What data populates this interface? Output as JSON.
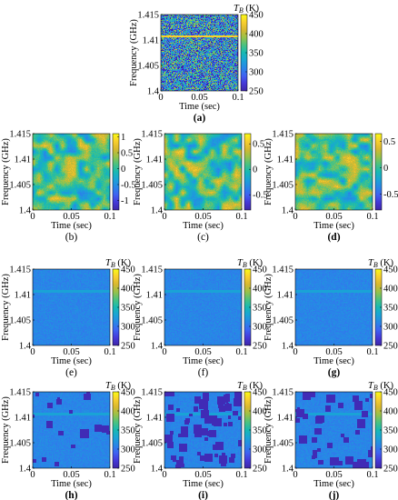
{
  "figure": {
    "panels": [
      {
        "id": "a",
        "label": "(a)",
        "bold": true,
        "map": "noise",
        "colorbar_title": "T_B (K)",
        "show_ylabel": true,
        "show_xlabel": true
      },
      {
        "id": "b",
        "label": "(b)",
        "bold": false,
        "map": "smooth",
        "colorbar_title": "",
        "show_ylabel": true,
        "show_xlabel": true
      },
      {
        "id": "c",
        "label": "(c)",
        "bold": false,
        "map": "smooth",
        "colorbar_title": "",
        "show_ylabel": true,
        "show_xlabel": true
      },
      {
        "id": "d",
        "label": "(d)",
        "bold": true,
        "map": "smooth",
        "colorbar_title": "",
        "show_ylabel": true,
        "show_xlabel": true
      },
      {
        "id": "e",
        "label": "(e)",
        "bold": false,
        "map": "blue",
        "colorbar_title": "T_B (K)",
        "show_ylabel": true,
        "show_xlabel": true
      },
      {
        "id": "f",
        "label": "(f)",
        "bold": false,
        "map": "blue",
        "colorbar_title": "T_B (K)",
        "show_ylabel": true,
        "show_xlabel": true
      },
      {
        "id": "g",
        "label": "(g)",
        "bold": true,
        "map": "blue",
        "colorbar_title": "T_B (K)",
        "show_ylabel": true,
        "show_xlabel": true
      },
      {
        "id": "h",
        "label": "(h)",
        "bold": true,
        "map": "rfi",
        "colorbar_title": "T_B (K)",
        "show_ylabel": true,
        "show_xlabel": true
      },
      {
        "id": "i",
        "label": "(i)",
        "bold": true,
        "map": "rfi",
        "colorbar_title": "T_B (K)",
        "show_ylabel": true,
        "show_xlabel": true
      },
      {
        "id": "j",
        "label": "(j)",
        "bold": true,
        "map": "rfi",
        "colorbar_title": "T_B (K)",
        "show_ylabel": true,
        "show_xlabel": true
      }
    ]
  },
  "chart_data": {
    "type": "heatmap",
    "xlabel": "Time (sec)",
    "ylabel": "Frequency (GHz)",
    "xlim": [
      0,
      0.1
    ],
    "ylim": [
      1.4,
      1.415
    ],
    "x_ticks": [
      "0",
      "0.05",
      "0.1"
    ],
    "y_ticks": [
      "1.4",
      "1.405",
      "1.41",
      "1.415"
    ],
    "colorbars": {
      "a": {
        "range": [
          250,
          450
        ],
        "ticks": [
          "250",
          "300",
          "350",
          "400",
          "450"
        ]
      },
      "b": {
        "range": [
          -1.3,
          1.1
        ],
        "ticks": [
          "-1",
          "-0.5",
          "0",
          "0.5",
          "1"
        ]
      },
      "c": {
        "range": [
          -0.8,
          0.7
        ],
        "ticks": [
          "-0.5",
          "0",
          "0.5"
        ]
      },
      "d": {
        "range": [
          -0.8,
          0.65
        ],
        "ticks": [
          "-0.5",
          "0",
          "0.5"
        ]
      },
      "e": {
        "range": [
          250,
          450
        ],
        "ticks": [
          "250",
          "300",
          "350",
          "400",
          "450"
        ]
      },
      "f": {
        "range": [
          250,
          450
        ],
        "ticks": [
          "250",
          "300",
          "350",
          "400",
          "450"
        ]
      },
      "g": {
        "range": [
          250,
          450
        ],
        "ticks": [
          "250",
          "300",
          "350",
          "400",
          "450"
        ]
      },
      "h": {
        "range": [
          250,
          450
        ],
        "ticks": [
          "250",
          "300",
          "350",
          "400",
          "450"
        ]
      },
      "i": {
        "range": [
          250,
          450
        ],
        "ticks": [
          "250",
          "300",
          "350",
          "400",
          "450"
        ]
      },
      "j": {
        "range": [
          250,
          450
        ],
        "ticks": [
          "250",
          "300",
          "350",
          "400",
          "450"
        ]
      }
    },
    "colormap": [
      "#3e26a8",
      "#4538d8",
      "#3f62f2",
      "#2886e7",
      "#1aa3d6",
      "#17b9b3",
      "#4ac281",
      "#98c24a",
      "#d8b82f",
      "#f9cf2d",
      "#f9fb15"
    ]
  }
}
